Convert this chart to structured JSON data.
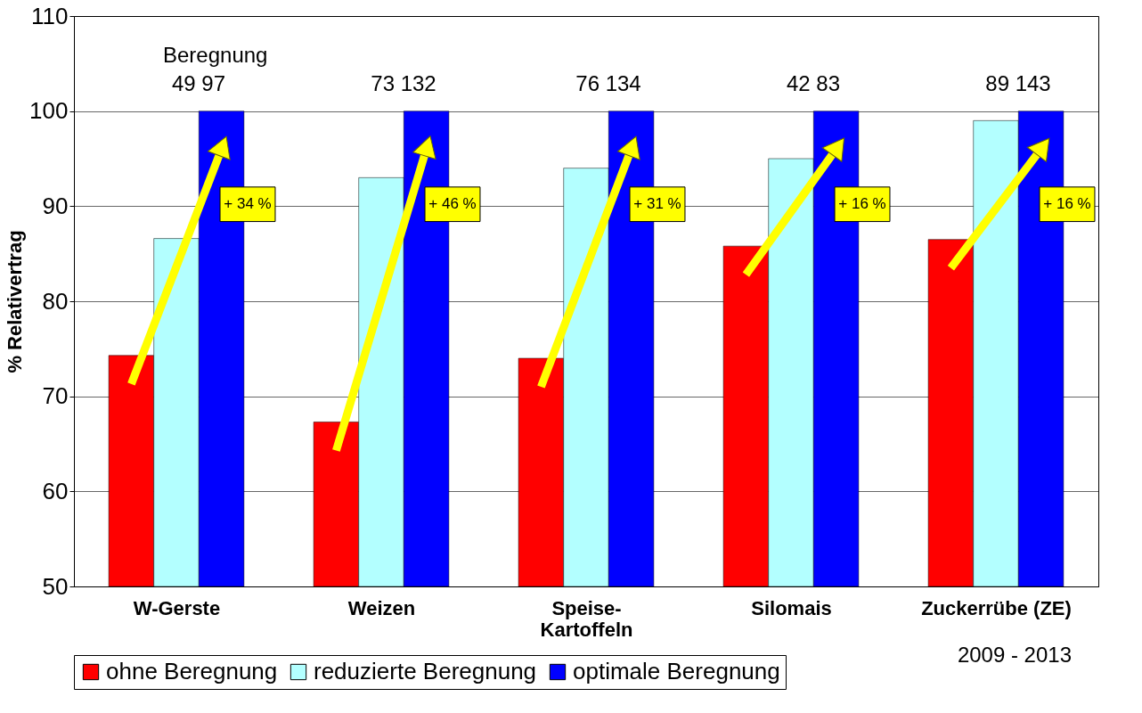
{
  "chart_data": {
    "type": "bar",
    "ylabel": "% Relativertrag",
    "categories": [
      "W-Gerste",
      "Weizen",
      "Speise-\nKartoffeln",
      "Silomais",
      "Zuckerrübe (ZE)"
    ],
    "series": [
      {
        "name": "ohne Beregnung",
        "color": "#ff0000",
        "values": [
          74.3,
          67.3,
          74.0,
          85.8,
          86.5
        ]
      },
      {
        "name": "reduzierte Beregnung",
        "color": "#b3ffff",
        "values": [
          86.6,
          93.0,
          94.0,
          95.0,
          99.0
        ]
      },
      {
        "name": "optimale Beregnung",
        "color": "#0000ff",
        "values": [
          100,
          100,
          100,
          100,
          100
        ]
      }
    ],
    "ylim": [
      50,
      110
    ],
    "yticks": [
      50,
      60,
      70,
      80,
      90,
      100,
      110
    ],
    "grid": "y",
    "legend": "bottom",
    "annotations": [
      "Beregnung",
      "49   97",
      "73  132",
      "76  134",
      "42   83",
      "89  143",
      "+ 34 %",
      "+ 46 %",
      "+ 31 %",
      "+ 16 %",
      "+ 16 %",
      "2009 - 2013"
    ]
  }
}
